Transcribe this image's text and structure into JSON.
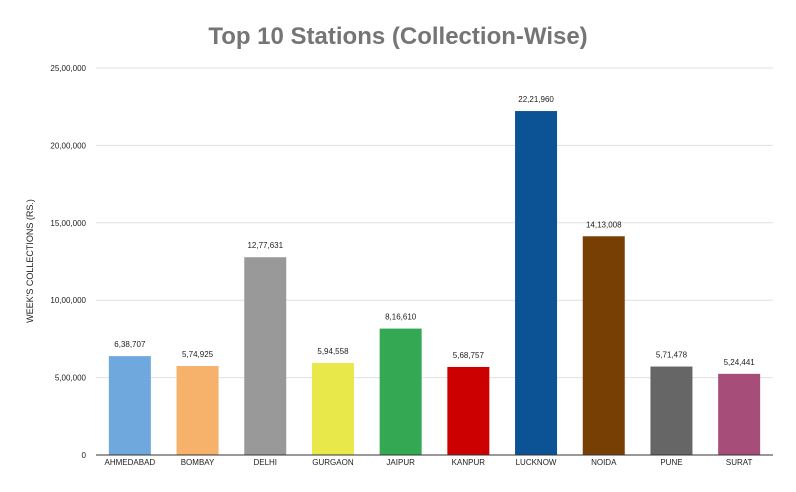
{
  "chart_data": {
    "type": "bar",
    "title": "Top 10 Stations (Collection-Wise)",
    "xlabel": "",
    "ylabel": "WEEK'S COLLECTIONS (RS.)",
    "ylim": [
      0,
      2500000
    ],
    "y_ticks": [
      {
        "value": 0,
        "label": "0"
      },
      {
        "value": 500000,
        "label": "5,00,000"
      },
      {
        "value": 1000000,
        "label": "10,00,000"
      },
      {
        "value": 1500000,
        "label": "15,00,000"
      },
      {
        "value": 2000000,
        "label": "20,00,000"
      },
      {
        "value": 2500000,
        "label": "25,00,000"
      }
    ],
    "grid": true,
    "legend": "none",
    "categories": [
      "AHMEDABAD",
      "BOMBAY",
      "DELHI",
      "GURGAON",
      "JAIPUR",
      "KANPUR",
      "LUCKNOW",
      "NOIDA",
      "PUNE",
      "SURAT"
    ],
    "values": [
      638707,
      574925,
      1277631,
      594558,
      816610,
      568757,
      2221960,
      1413008,
      571478,
      524441
    ],
    "value_labels": [
      "6,38,707",
      "5,74,925",
      "12,77,631",
      "5,94,558",
      "8,16,610",
      "5,68,757",
      "22,21,960",
      "14,13,008",
      "5,71,478",
      "5,24,441"
    ],
    "colors": [
      "#6fa8dc",
      "#f6b26b",
      "#999999",
      "#e8e84a",
      "#34a853",
      "#cc0000",
      "#0b5394",
      "#783f04",
      "#666666",
      "#a64d79"
    ]
  }
}
